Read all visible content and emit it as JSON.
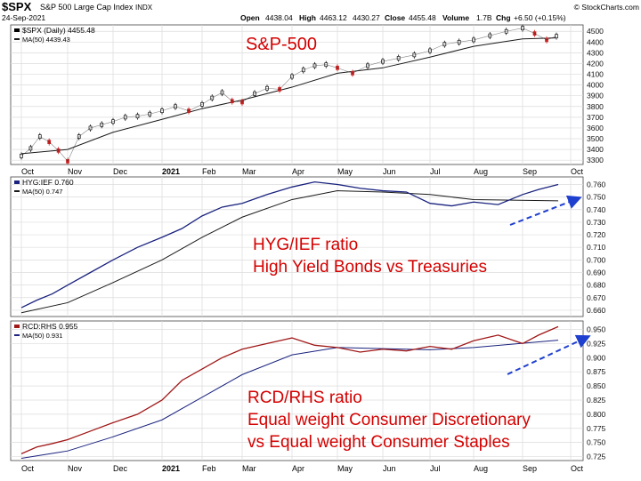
{
  "header": {
    "ticker": "$SPX",
    "name": "S&P 500 Large Cap Index",
    "exchange": "INDX",
    "date": "24-Sep-2021",
    "open_label": "Open",
    "open": "4438.04",
    "high_label": "High",
    "high": "4463.12",
    "low": "4430.27",
    "close_label": "Close",
    "close": "4455.48",
    "volume_label": "Volume",
    "volume": "1.7B",
    "chg_label": "Chg",
    "chg": "+6.50 (+0.15%)",
    "copyright": "© StockCharts.com"
  },
  "colors": {
    "annotation_red": "#d40000",
    "ma_line": "#1a1a1a",
    "ratio_blue": "#1a237e",
    "ratio_maroon": "#a01818",
    "arrow_blue": "#1f3fcf",
    "candle_up": "#111111",
    "candle_down": "#cc2222",
    "grid": "#dcdcdc"
  },
  "chart_data": [
    {
      "type": "candlestick",
      "legend_series": "$SPX (Daily) 4455.48",
      "legend_ma": "MA(50) 4439.43",
      "annotation": "S&P-500",
      "y_ticks": [
        "3300",
        "3400",
        "3500",
        "3600",
        "3700",
        "3800",
        "3900",
        "4000",
        "4100",
        "4200",
        "4300",
        "4400",
        "4500"
      ],
      "ylim": [
        3260,
        4560
      ],
      "series": {
        "name": "$SPX",
        "points": [
          [
            "Oct",
            3340
          ],
          [
            "Oct",
            3410
          ],
          [
            "Oct",
            3520
          ],
          [
            "Oct",
            3470
          ],
          [
            "Oct",
            3390
          ],
          [
            "Nov",
            3290
          ],
          [
            "Nov",
            3520
          ],
          [
            "Nov",
            3600
          ],
          [
            "Nov",
            3630
          ],
          [
            "Dec",
            3660
          ],
          [
            "Dec",
            3700
          ],
          [
            "Dec",
            3710
          ],
          [
            "Dec",
            3730
          ],
          [
            "2021",
            3760
          ],
          [
            "2021",
            3800
          ],
          [
            "2021",
            3760
          ],
          [
            "Feb",
            3820
          ],
          [
            "Feb",
            3880
          ],
          [
            "Feb",
            3930
          ],
          [
            "Feb",
            3850
          ],
          [
            "Mar",
            3840
          ],
          [
            "Mar",
            3920
          ],
          [
            "Mar",
            3970
          ],
          [
            "Mar",
            3960
          ],
          [
            "Apr",
            4080
          ],
          [
            "Apr",
            4140
          ],
          [
            "Apr",
            4180
          ],
          [
            "Apr",
            4190
          ],
          [
            "May",
            4160
          ],
          [
            "May",
            4110
          ],
          [
            "May",
            4180
          ],
          [
            "Jun",
            4220
          ],
          [
            "Jun",
            4250
          ],
          [
            "Jun",
            4280
          ],
          [
            "Jul",
            4320
          ],
          [
            "Jul",
            4380
          ],
          [
            "Jul",
            4400
          ],
          [
            "Aug",
            4420
          ],
          [
            "Aug",
            4460
          ],
          [
            "Aug",
            4500
          ],
          [
            "Sep",
            4530
          ],
          [
            "Sep",
            4480
          ],
          [
            "Sep",
            4420
          ],
          [
            "Sep",
            4455
          ]
        ]
      },
      "ma": {
        "name": "MA(50)",
        "points": [
          [
            "Oct",
            3360
          ],
          [
            "Nov",
            3400
          ],
          [
            "Dec",
            3560
          ],
          [
            "2021",
            3680
          ],
          [
            "Feb",
            3780
          ],
          [
            "Mar",
            3860
          ],
          [
            "Apr",
            3980
          ],
          [
            "May",
            4110
          ],
          [
            "Jun",
            4160
          ],
          [
            "Jul",
            4260
          ],
          [
            "Aug",
            4360
          ],
          [
            "Sep",
            4430
          ],
          [
            "Sep",
            4439
          ]
        ]
      }
    },
    {
      "type": "line",
      "legend_series": "HYG:IEF 0.760",
      "legend_ma": "MA(50) 0.747",
      "annotation": [
        "HYG/IEF ratio",
        "High Yield Bonds vs Treasuries"
      ],
      "y_ticks": [
        "0.660",
        "0.670",
        "0.680",
        "0.690",
        "0.700",
        "0.710",
        "0.720",
        "0.730",
        "0.740",
        "0.750",
        "0.760"
      ],
      "ylim": [
        0.655,
        0.766
      ],
      "series": {
        "name": "HYG:IEF",
        "points": [
          [
            "Oct",
            0.662
          ],
          [
            "Oct",
            0.668
          ],
          [
            "Oct",
            0.673
          ],
          [
            "Nov",
            0.68
          ],
          [
            "Nov",
            0.69
          ],
          [
            "Dec",
            0.7
          ],
          [
            "Dec",
            0.71
          ],
          [
            "2021",
            0.718
          ],
          [
            "2021",
            0.725
          ],
          [
            "Feb",
            0.735
          ],
          [
            "Feb",
            0.742
          ],
          [
            "Mar",
            0.745
          ],
          [
            "Mar",
            0.752
          ],
          [
            "Apr",
            0.758
          ],
          [
            "Apr",
            0.762
          ],
          [
            "May",
            0.76
          ],
          [
            "May",
            0.757
          ],
          [
            "Jun",
            0.755
          ],
          [
            "Jun",
            0.754
          ],
          [
            "Jul",
            0.745
          ],
          [
            "Jul",
            0.743
          ],
          [
            "Aug",
            0.746
          ],
          [
            "Aug",
            0.744
          ],
          [
            "Sep",
            0.752
          ],
          [
            "Sep",
            0.756
          ],
          [
            "Sep",
            0.76
          ]
        ]
      },
      "ma": {
        "name": "MA(50)",
        "points": [
          [
            "Oct",
            0.658
          ],
          [
            "Nov",
            0.666
          ],
          [
            "Dec",
            0.682
          ],
          [
            "2021",
            0.7
          ],
          [
            "Feb",
            0.718
          ],
          [
            "Mar",
            0.734
          ],
          [
            "Apr",
            0.748
          ],
          [
            "May",
            0.755
          ],
          [
            "Jun",
            0.754
          ],
          [
            "Jul",
            0.752
          ],
          [
            "Aug",
            0.748
          ],
          [
            "Sep",
            0.747
          ]
        ]
      }
    },
    {
      "type": "line",
      "legend_series": "RCD:RHS 0.955",
      "legend_ma": "MA(50) 0.931",
      "annotation": [
        "RCD/RHS ratio",
        "Equal weight Consumer Discretionary",
        "vs Equal weight Consumer Staples"
      ],
      "y_ticks": [
        "0.725",
        "0.750",
        "0.775",
        "0.800",
        "0.825",
        "0.850",
        "0.875",
        "0.900",
        "0.925",
        "0.950"
      ],
      "ylim": [
        0.718,
        0.965
      ],
      "series": {
        "name": "RCD:RHS",
        "points": [
          [
            "Oct",
            0.73
          ],
          [
            "Oct",
            0.742
          ],
          [
            "Oct",
            0.748
          ],
          [
            "Nov",
            0.755
          ],
          [
            "Nov",
            0.77
          ],
          [
            "Dec",
            0.785
          ],
          [
            "Dec",
            0.8
          ],
          [
            "2021",
            0.825
          ],
          [
            "2021",
            0.86
          ],
          [
            "Feb",
            0.88
          ],
          [
            "Feb",
            0.9
          ],
          [
            "Mar",
            0.915
          ],
          [
            "Mar",
            0.925
          ],
          [
            "Apr",
            0.935
          ],
          [
            "Apr",
            0.922
          ],
          [
            "May",
            0.918
          ],
          [
            "May",
            0.91
          ],
          [
            "Jun",
            0.915
          ],
          [
            "Jun",
            0.912
          ],
          [
            "Jul",
            0.92
          ],
          [
            "Jul",
            0.915
          ],
          [
            "Aug",
            0.93
          ],
          [
            "Aug",
            0.94
          ],
          [
            "Sep",
            0.925
          ],
          [
            "Sep",
            0.94
          ],
          [
            "Sep",
            0.955
          ]
        ]
      },
      "ma": {
        "name": "MA(50)",
        "points": [
          [
            "Oct",
            0.722
          ],
          [
            "Nov",
            0.735
          ],
          [
            "Dec",
            0.76
          ],
          [
            "2021",
            0.79
          ],
          [
            "Feb",
            0.83
          ],
          [
            "Mar",
            0.87
          ],
          [
            "Apr",
            0.905
          ],
          [
            "May",
            0.918
          ],
          [
            "Jun",
            0.916
          ],
          [
            "Jul",
            0.914
          ],
          [
            "Aug",
            0.918
          ],
          [
            "Sep",
            0.931
          ]
        ]
      }
    }
  ],
  "x_axis": {
    "labels": [
      "Oct",
      "Nov",
      "Dec",
      "2021",
      "Feb",
      "Mar",
      "Apr",
      "May",
      "Jun",
      "Jul",
      "Aug",
      "Sep",
      "Oct"
    ]
  }
}
